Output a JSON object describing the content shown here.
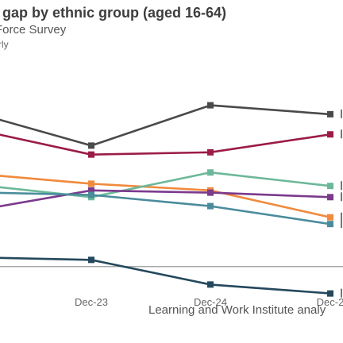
{
  "header": {
    "title": "t gap by ethnic group (aged 16-64)",
    "subtitle": "Force Survey",
    "subsubtitle": "rly"
  },
  "source": "Learning and Work Institute analy",
  "chart_data": {
    "type": "line",
    "x": [
      "",
      "Dec-23",
      "Dec-24",
      "Dec-2"
    ],
    "x_tick_labels_shown": [
      "Dec-23",
      "Dec-24",
      "Dec-2"
    ],
    "y_scale_note": "y-axis hidden; values are relative (0-100 scale, 0 = reference line)",
    "ylim": [
      -10,
      80
    ],
    "reference_line": 0,
    "series": [
      {
        "color": "#4a4a4a",
        "values": [
          67,
          54,
          72,
          68
        ]
      },
      {
        "color": "#9b1c45",
        "values": [
          60,
          50,
          51,
          59
        ]
      },
      {
        "color": "#f08a3c",
        "values": [
          41,
          37,
          34,
          22
        ]
      },
      {
        "color": "#6cb89a",
        "values": [
          36,
          31,
          42,
          36
        ]
      },
      {
        "color": "#7b3a8c",
        "values": [
          26,
          34,
          33,
          31
        ]
      },
      {
        "color": "#4a8c9c",
        "values": [
          33,
          32,
          27,
          19
        ]
      },
      {
        "color": "#24485c",
        "values": [
          4,
          3,
          -8,
          -12
        ]
      }
    ]
  }
}
